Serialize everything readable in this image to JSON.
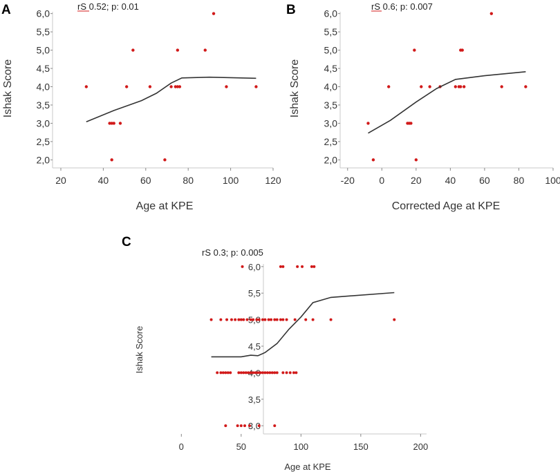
{
  "chart_data": [
    {
      "panel": "A",
      "type": "scatter",
      "annotation": "rS 0.52; p: 0.01",
      "xlabel": "Age at KPE",
      "ylabel": "Ishak Score",
      "xlim": [
        20,
        120
      ],
      "ylim": [
        1.95,
        6.05
      ],
      "xticks": [
        "20",
        "40",
        "60",
        "80",
        "100",
        "120"
      ],
      "yticks": [
        "2,0",
        "2,5",
        "3,0",
        "3,5",
        "4,0",
        "4,5",
        "5,0",
        "5,5",
        "6,0"
      ],
      "points": [
        [
          32,
          4
        ],
        [
          43,
          3
        ],
        [
          44,
          3
        ],
        [
          45,
          3
        ],
        [
          44,
          2
        ],
        [
          48,
          3
        ],
        [
          51,
          4
        ],
        [
          54,
          5
        ],
        [
          62,
          4
        ],
        [
          69,
          2
        ],
        [
          72,
          4
        ],
        [
          74,
          4
        ],
        [
          75,
          5
        ],
        [
          76,
          4
        ],
        [
          75,
          4
        ],
        [
          88,
          5
        ],
        [
          92,
          6
        ],
        [
          98,
          4
        ],
        [
          112,
          4
        ]
      ],
      "trend": [
        [
          32,
          3.04
        ],
        [
          45,
          3.35
        ],
        [
          58,
          3.62
        ],
        [
          65,
          3.82
        ],
        [
          72,
          4.1
        ],
        [
          77,
          4.24
        ],
        [
          90,
          4.26
        ],
        [
          112,
          4.23
        ]
      ]
    },
    {
      "panel": "B",
      "type": "scatter",
      "annotation": "rS 0.6; p: 0.007",
      "xlabel": "Corrected Age at KPE",
      "ylabel": "Ishak Score",
      "xlim": [
        -30,
        100
      ],
      "ylim": [
        1.95,
        6.05
      ],
      "xticks": [
        "-20",
        "0",
        "20",
        "40",
        "60",
        "80",
        "100"
      ],
      "yticks": [
        "2,0",
        "2,5",
        "3,0",
        "3,5",
        "4,0",
        "4,5",
        "5,0",
        "5,5",
        "6,0"
      ],
      "points": [
        [
          -8,
          3
        ],
        [
          -5,
          2
        ],
        [
          4,
          4
        ],
        [
          15,
          3
        ],
        [
          16,
          3
        ],
        [
          17,
          3
        ],
        [
          19,
          5
        ],
        [
          20,
          2
        ],
        [
          23,
          4
        ],
        [
          28,
          4
        ],
        [
          34,
          4
        ],
        [
          43,
          4
        ],
        [
          45,
          4
        ],
        [
          46,
          5
        ],
        [
          47,
          5
        ],
        [
          46,
          4
        ],
        [
          48,
          4
        ],
        [
          64,
          6
        ],
        [
          70,
          4
        ],
        [
          84,
          4
        ]
      ],
      "trend": [
        [
          -8,
          2.73
        ],
        [
          5,
          3.08
        ],
        [
          20,
          3.58
        ],
        [
          32,
          3.95
        ],
        [
          43,
          4.2
        ],
        [
          60,
          4.3
        ],
        [
          84,
          4.41
        ]
      ]
    },
    {
      "panel": "C",
      "type": "scatter",
      "annotation": "rS 0.3; p: 0.005",
      "xlabel": "Age at KPE",
      "ylabel": "Ishak Score",
      "xlim": [
        -10,
        205
      ],
      "ylim": [
        2.95,
        6.05
      ],
      "xticks": [
        "0",
        "50",
        "100",
        "150",
        "200"
      ],
      "yticks": [
        "3,0",
        "3,5",
        "4,0",
        "4,5",
        "5,0",
        "5,5",
        "6,0"
      ],
      "points": [
        [
          25,
          5
        ],
        [
          33,
          5
        ],
        [
          38,
          5
        ],
        [
          42,
          5
        ],
        [
          45,
          5
        ],
        [
          48,
          5
        ],
        [
          50,
          5
        ],
        [
          52,
          5
        ],
        [
          55,
          5
        ],
        [
          58,
          5
        ],
        [
          60,
          5
        ],
        [
          63,
          5
        ],
        [
          65,
          5
        ],
        [
          68,
          5
        ],
        [
          70,
          5
        ],
        [
          73,
          5
        ],
        [
          75,
          5
        ],
        [
          78,
          5
        ],
        [
          80,
          5
        ],
        [
          83,
          5
        ],
        [
          85,
          5
        ],
        [
          88,
          5
        ],
        [
          95,
          5
        ],
        [
          104,
          5
        ],
        [
          110,
          5
        ],
        [
          125,
          5
        ],
        [
          178,
          5
        ],
        [
          30,
          4
        ],
        [
          33,
          4
        ],
        [
          35,
          4
        ],
        [
          37,
          4
        ],
        [
          39,
          4
        ],
        [
          41,
          4
        ],
        [
          48,
          4
        ],
        [
          50,
          4
        ],
        [
          52,
          4
        ],
        [
          54,
          4
        ],
        [
          56,
          4
        ],
        [
          58,
          4
        ],
        [
          60,
          4
        ],
        [
          62,
          4
        ],
        [
          64,
          4
        ],
        [
          66,
          4
        ],
        [
          68,
          4
        ],
        [
          70,
          4
        ],
        [
          72,
          4
        ],
        [
          74,
          4
        ],
        [
          76,
          4
        ],
        [
          78,
          4
        ],
        [
          80,
          4
        ],
        [
          85,
          4
        ],
        [
          88,
          4
        ],
        [
          91,
          4
        ],
        [
          94,
          4
        ],
        [
          96,
          4
        ],
        [
          51,
          6
        ],
        [
          83,
          6
        ],
        [
          85,
          6
        ],
        [
          97,
          6
        ],
        [
          101,
          6
        ],
        [
          109,
          6
        ],
        [
          111,
          6
        ],
        [
          37,
          3
        ],
        [
          47,
          3
        ],
        [
          50,
          3
        ],
        [
          53,
          3
        ],
        [
          57,
          3
        ],
        [
          65,
          3
        ],
        [
          78,
          3
        ]
      ],
      "trend": [
        [
          25,
          4.3
        ],
        [
          50,
          4.3
        ],
        [
          58,
          4.33
        ],
        [
          64,
          4.32
        ],
        [
          70,
          4.38
        ],
        [
          80,
          4.55
        ],
        [
          90,
          4.82
        ],
        [
          100,
          5.05
        ],
        [
          110,
          5.32
        ],
        [
          125,
          5.42
        ],
        [
          178,
          5.51
        ]
      ]
    }
  ],
  "labels": {
    "A": "A",
    "B": "B",
    "C": "C"
  },
  "colors": {
    "point": "#d11a1a",
    "trend": "#333333",
    "axis": "#c8c8c8"
  }
}
